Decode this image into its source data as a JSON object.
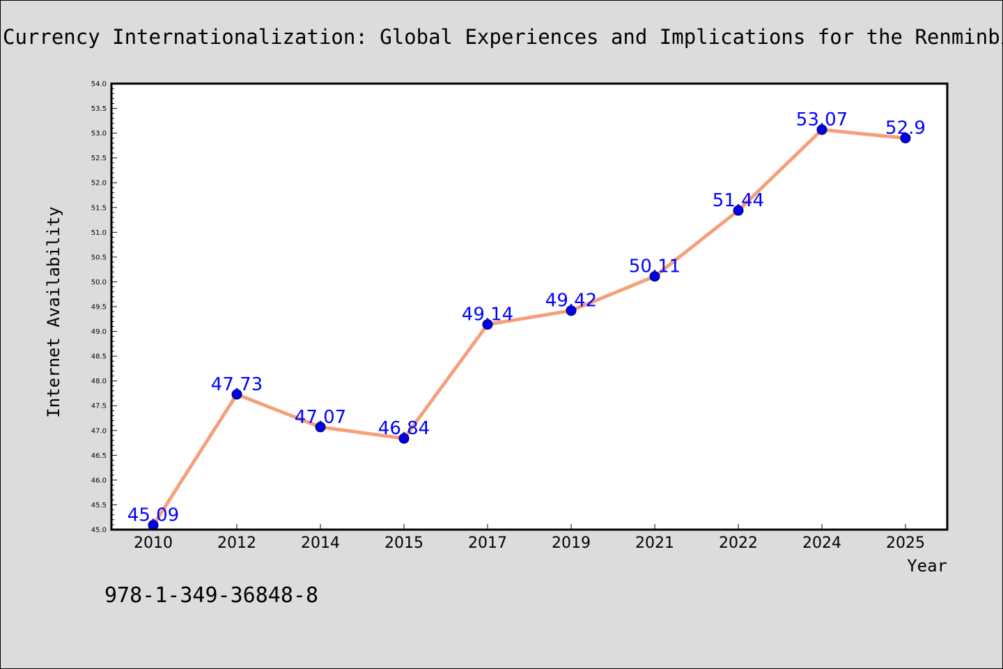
{
  "page": {
    "background": "#dcdcdc",
    "title": "Currency Internationalization: Global Experiences and Implications for the Renminbi",
    "footnote": "978-1-349-36848-8"
  },
  "chart_data": {
    "type": "line",
    "title": "Currency Internationalization: Global Experiences and Implications for the Renminbi",
    "xlabel": "Year",
    "ylabel": "Internet Availability",
    "categories": [
      "2010",
      "2012",
      "2014",
      "2015",
      "2017",
      "2019",
      "2021",
      "2022",
      "2024",
      "2025"
    ],
    "series": [
      {
        "values": [
          45.09,
          47.73,
          47.07,
          46.84,
          49.14,
          49.42,
          50.11,
          51.44,
          53.07,
          52.9
        ],
        "labels": [
          "45.09",
          "47.73",
          "47.07",
          "46.84",
          "49.14",
          "49.42",
          "50.11",
          "51.44",
          "53.07",
          "52.9"
        ],
        "line_color": "#f4a07a",
        "marker_color": "#0000ee",
        "label_color": "#0000ff"
      }
    ],
    "ylim": [
      45.0,
      54.0
    ],
    "ytick_step": 0.5,
    "grid": false,
    "legend": "none"
  }
}
